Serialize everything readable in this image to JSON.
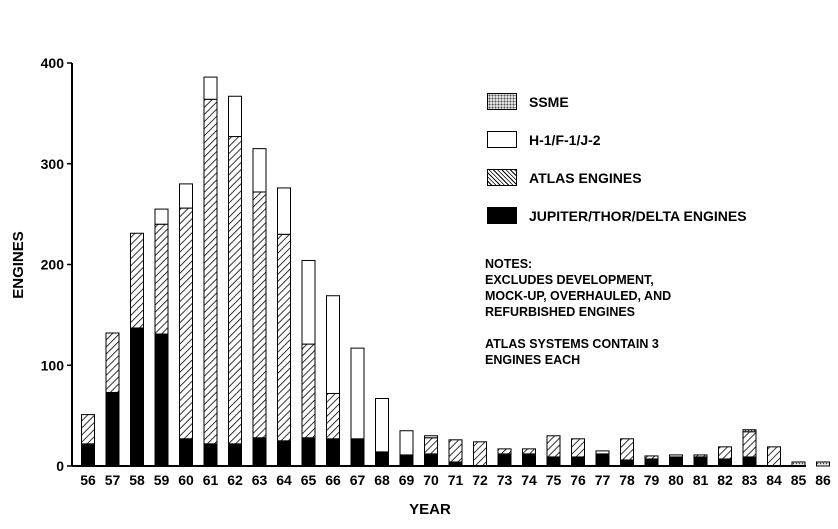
{
  "chart_data": {
    "type": "bar",
    "stacked": true,
    "xlabel": "YEAR",
    "ylabel": "ENGINES",
    "ylim": [
      0,
      400
    ],
    "yticks": [
      0,
      100,
      200,
      300,
      400
    ],
    "categories": [
      "56",
      "57",
      "58",
      "59",
      "60",
      "61",
      "62",
      "63",
      "64",
      "65",
      "66",
      "67",
      "68",
      "69",
      "70",
      "71",
      "72",
      "73",
      "74",
      "75",
      "76",
      "77",
      "78",
      "79",
      "80",
      "81",
      "82",
      "83",
      "84",
      "85",
      "86"
    ],
    "series": [
      {
        "name": "JUPITER/THOR/DELTA ENGINES",
        "pattern": "solid",
        "values": [
          22,
          73,
          137,
          131,
          27,
          22,
          22,
          28,
          25,
          28,
          27,
          27,
          14,
          11,
          12,
          4,
          0,
          12,
          12,
          9,
          9,
          12,
          6,
          7,
          9,
          9,
          7,
          9,
          0,
          0,
          0
        ]
      },
      {
        "name": "ATLAS ENGINES",
        "pattern": "hatch",
        "values": [
          29,
          59,
          94,
          109,
          229,
          342,
          305,
          244,
          205,
          93,
          45,
          0,
          0,
          0,
          16,
          22,
          24,
          5,
          5,
          21,
          18,
          0,
          21,
          3,
          0,
          2,
          12,
          25,
          19,
          0,
          0
        ]
      },
      {
        "name": "H-1/F-1/J-2",
        "pattern": "open",
        "values": [
          0,
          0,
          0,
          15,
          24,
          22,
          40,
          43,
          46,
          83,
          97,
          90,
          53,
          24,
          2,
          0,
          0,
          0,
          0,
          0,
          0,
          3,
          0,
          0,
          2,
          0,
          0,
          0,
          0,
          0,
          0
        ]
      },
      {
        "name": "SSME",
        "pattern": "dotted",
        "values": [
          0,
          0,
          0,
          0,
          0,
          0,
          0,
          0,
          0,
          0,
          0,
          0,
          0,
          0,
          0,
          0,
          0,
          0,
          0,
          0,
          0,
          0,
          0,
          0,
          0,
          0,
          0,
          2,
          0,
          4,
          4
        ]
      }
    ]
  },
  "legend": {
    "items": [
      {
        "label": "SSME"
      },
      {
        "label": "H-1/F-1/J-2"
      },
      {
        "label": "ATLAS ENGINES"
      },
      {
        "label": "JUPITER/THOR/DELTA ENGINES"
      }
    ]
  },
  "notes": {
    "lines": [
      "NOTES:",
      "EXCLUDES DEVELOPMENT,",
      "MOCK-UP, OVERHAULED, AND",
      "REFURBISHED ENGINES",
      "ATLAS SYSTEMS CONTAIN 3",
      "ENGINES EACH"
    ]
  }
}
